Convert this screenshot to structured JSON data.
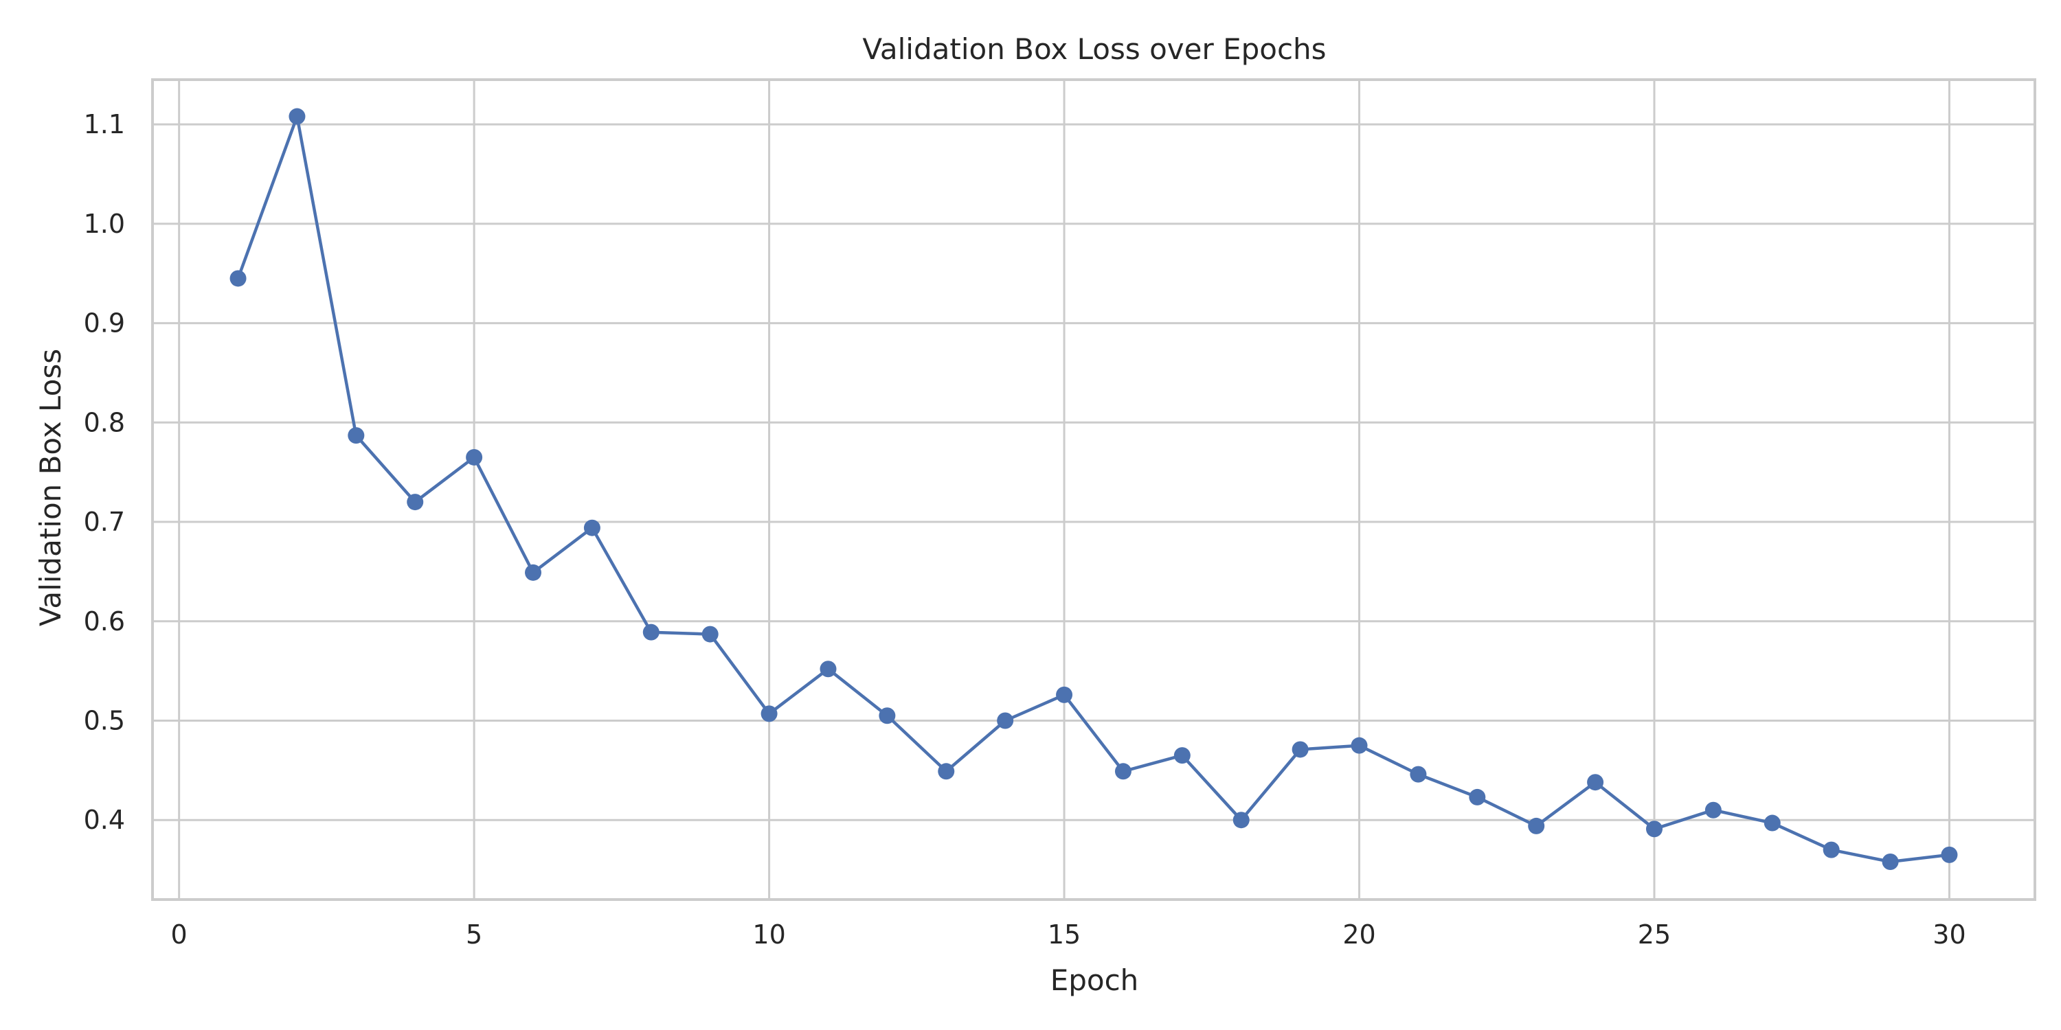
{
  "chart_data": {
    "type": "line",
    "title": "Validation Box Loss over Epochs",
    "xlabel": "Epoch",
    "ylabel": "Validation Box Loss",
    "xlim": [
      -0.45,
      31.45
    ],
    "ylim": [
      0.32,
      1.145
    ],
    "xticks": [
      0,
      5,
      10,
      15,
      20,
      25,
      30
    ],
    "xtick_labels": [
      "0",
      "5",
      "10",
      "15",
      "20",
      "25",
      "30"
    ],
    "yticks": [
      0.4,
      0.5,
      0.6,
      0.7,
      0.8,
      0.9,
      1.0,
      1.1
    ],
    "ytick_labels": [
      "0.4",
      "0.5",
      "0.6",
      "0.7",
      "0.8",
      "0.9",
      "1.0",
      "1.1"
    ],
    "grid": true,
    "marker": "circle",
    "series": [
      {
        "x": [
          1,
          2,
          3,
          4,
          5,
          6,
          7,
          8,
          9,
          10,
          11,
          12,
          13,
          14,
          15,
          16,
          17,
          18,
          19,
          20,
          21,
          22,
          23,
          24,
          25,
          26,
          27,
          28,
          29,
          30
        ],
        "values": [
          0.945,
          1.108,
          0.787,
          0.72,
          0.765,
          0.649,
          0.694,
          0.589,
          0.587,
          0.507,
          0.552,
          0.505,
          0.449,
          0.5,
          0.526,
          0.449,
          0.465,
          0.4,
          0.471,
          0.475,
          0.446,
          0.423,
          0.394,
          0.438,
          0.391,
          0.41,
          0.397,
          0.37,
          0.358,
          0.365
        ],
        "color": "#4c72b0"
      }
    ],
    "colors": {
      "line": "#4c72b0",
      "grid": "#cccccc",
      "frame": "#cccccc",
      "text": "#262626",
      "background": "#ffffff"
    }
  }
}
